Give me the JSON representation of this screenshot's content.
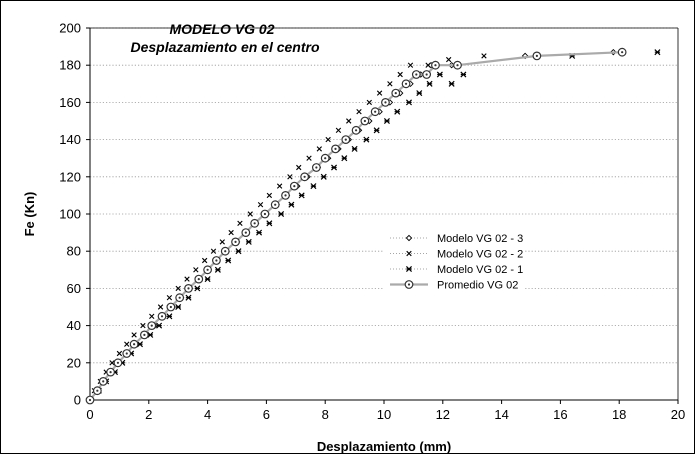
{
  "chart_data": {
    "type": "scatter",
    "title": "MODELO VG 02",
    "subtitle": "Desplazamiento en el centro",
    "xlabel": "Desplazamiento (mm)",
    "ylabel": "Fe (Kn)",
    "xlim": [
      0,
      20
    ],
    "ylim": [
      0,
      200
    ],
    "x_ticks": [
      "0",
      "2",
      "4",
      "6",
      "8",
      "10",
      "12",
      "14",
      "16",
      "18",
      "20"
    ],
    "y_ticks": [
      "0",
      "20",
      "40",
      "60",
      "80",
      "100",
      "120",
      "140",
      "160",
      "180",
      "200"
    ],
    "grid": "horizontal-dotted",
    "legend_position": "center-right",
    "colors": {
      "markers": "#000000",
      "promedio_line": "#aaaaaa",
      "grid": "#999999"
    },
    "series": [
      {
        "name": "Modelo VG 02 - 3",
        "marker": "diamond",
        "x": [
          0.0,
          0.25,
          0.5,
          0.75,
          1.0,
          1.3,
          1.6,
          1.9,
          2.2,
          2.5,
          2.8,
          3.1,
          3.4,
          3.7,
          4.0,
          4.3,
          4.65,
          5.0,
          5.3,
          5.65,
          6.0,
          6.35,
          6.7,
          7.05,
          7.4,
          7.75,
          8.1,
          8.45,
          8.8,
          9.15,
          9.5,
          9.85,
          10.2,
          10.55,
          10.9,
          11.25,
          11.6,
          12.3,
          14.8,
          17.8
        ],
        "y": [
          0,
          5,
          10,
          15,
          20,
          25,
          30,
          35,
          40,
          45,
          50,
          55,
          60,
          65,
          70,
          75,
          80,
          85,
          90,
          95,
          100,
          105,
          110,
          115,
          120,
          125,
          130,
          135,
          140,
          145,
          150,
          155,
          160,
          165,
          170,
          175,
          180,
          180,
          185,
          187
        ]
      },
      {
        "name": "Modelo VG 02 - 2",
        "marker": "x",
        "x": [
          0.0,
          0.15,
          0.35,
          0.55,
          0.75,
          1.0,
          1.25,
          1.5,
          1.8,
          2.1,
          2.4,
          2.7,
          3.0,
          3.3,
          3.6,
          3.9,
          4.2,
          4.5,
          4.8,
          5.1,
          5.45,
          5.8,
          6.1,
          6.45,
          6.8,
          7.1,
          7.45,
          7.8,
          8.1,
          8.45,
          8.8,
          9.15,
          9.5,
          9.85,
          10.2,
          10.55,
          10.9,
          11.5,
          12.2,
          13.4
        ],
        "y": [
          0,
          5,
          10,
          15,
          20,
          25,
          30,
          35,
          40,
          45,
          50,
          55,
          60,
          65,
          70,
          75,
          80,
          85,
          90,
          95,
          100,
          105,
          110,
          115,
          120,
          125,
          130,
          135,
          140,
          145,
          150,
          155,
          160,
          165,
          170,
          175,
          180,
          180,
          183,
          185
        ]
      },
      {
        "name": "Modelo VG 02 - 1",
        "marker": "asterisk",
        "x": [
          0.0,
          0.3,
          0.55,
          0.85,
          1.1,
          1.4,
          1.7,
          2.05,
          2.35,
          2.7,
          3.0,
          3.35,
          3.65,
          4.0,
          4.35,
          4.7,
          5.05,
          5.4,
          5.75,
          6.1,
          6.5,
          6.85,
          7.2,
          7.6,
          7.95,
          8.3,
          8.65,
          9.0,
          9.4,
          9.75,
          10.1,
          10.45,
          10.85,
          11.2,
          11.55,
          11.9,
          12.3,
          12.7,
          16.4,
          19.3
        ],
        "y": [
          0,
          5,
          10,
          15,
          20,
          25,
          30,
          35,
          40,
          45,
          50,
          55,
          60,
          65,
          70,
          75,
          80,
          85,
          90,
          95,
          100,
          105,
          110,
          115,
          120,
          125,
          130,
          135,
          140,
          145,
          150,
          155,
          160,
          165,
          170,
          175,
          170,
          175,
          185,
          187
        ]
      },
      {
        "name": "Promedio VG 02",
        "marker": "circle-dot",
        "line": true,
        "x": [
          0.0,
          0.25,
          0.45,
          0.7,
          0.95,
          1.25,
          1.5,
          1.85,
          2.1,
          2.45,
          2.75,
          3.05,
          3.35,
          3.7,
          4.0,
          4.3,
          4.6,
          4.95,
          5.3,
          5.6,
          5.95,
          6.3,
          6.65,
          6.95,
          7.3,
          7.7,
          8.0,
          8.35,
          8.7,
          9.05,
          9.35,
          9.7,
          10.05,
          10.4,
          10.75,
          11.1,
          11.45,
          11.75,
          12.5,
          15.2,
          18.1
        ],
        "y": [
          0,
          5,
          10,
          15,
          20,
          25,
          30,
          35,
          40,
          45,
          50,
          55,
          60,
          65,
          70,
          75,
          80,
          85,
          90,
          95,
          100,
          105,
          110,
          115,
          120,
          125,
          130,
          135,
          140,
          145,
          150,
          155,
          160,
          165,
          170,
          175,
          175,
          180,
          180,
          185,
          187
        ]
      }
    ]
  }
}
